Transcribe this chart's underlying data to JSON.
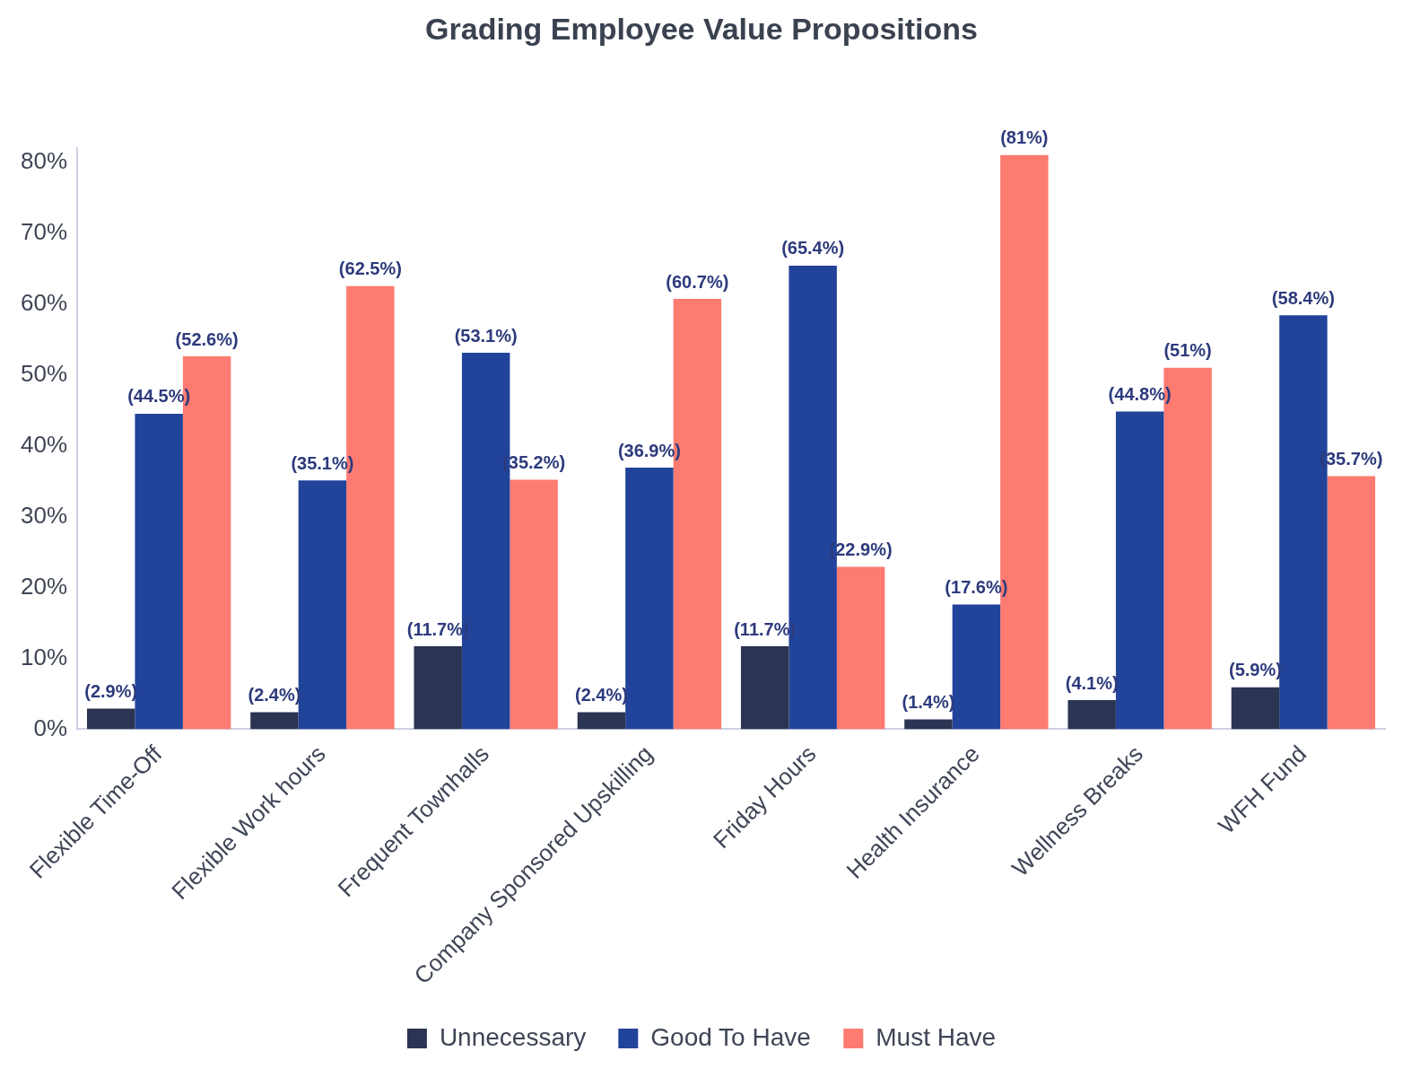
{
  "chart_data": {
    "type": "bar",
    "title": "Grading Employee Value Propositions",
    "categories": [
      "Flexible Time-Off",
      "Flexible Work hours",
      "Frequent Townhalls",
      "Company Sponsored Upskilling",
      "Friday Hours",
      "Health Insurance",
      "Wellness Breaks",
      "WFH Fund"
    ],
    "series": [
      {
        "name": "Unnecessary",
        "color": "#2b3452",
        "values": [
          2.9,
          2.4,
          11.7,
          2.4,
          11.7,
          1.4,
          4.1,
          5.9
        ],
        "value_labels": [
          "(2.9%)",
          "(2.4%)",
          "(11.7%)",
          "(2.4%)",
          "(11.7%)",
          "(1.4%)",
          "(4.1%)",
          "(5.9%)"
        ]
      },
      {
        "name": "Good To Have",
        "color": "#21439a",
        "values": [
          44.5,
          35.1,
          53.1,
          36.9,
          65.4,
          17.6,
          44.8,
          58.4
        ],
        "value_labels": [
          "(44.5%)",
          "(35.1%)",
          "(53.1%)",
          "(36.9%)",
          "(65.4%)",
          "(17.6%)",
          "(44.8%)",
          "(58.4%)"
        ]
      },
      {
        "name": "Must Have",
        "color": "#fe7b71",
        "values": [
          52.6,
          62.5,
          35.2,
          60.7,
          22.9,
          81,
          51,
          35.7
        ],
        "value_labels": [
          "(52.6%)",
          "(62.5%)",
          "(35.2%)",
          "(60.7%)",
          "(22.9%)",
          "(81%)",
          "(51%)",
          "(35.7%)"
        ]
      }
    ],
    "ylim": [
      0,
      82
    ],
    "yticks": [
      {
        "value": 0,
        "label": "0%"
      },
      {
        "value": 10,
        "label": "10%"
      },
      {
        "value": 20,
        "label": "20%"
      },
      {
        "value": 30,
        "label": "30%"
      },
      {
        "value": 40,
        "label": "40%"
      },
      {
        "value": 50,
        "label": "50%"
      },
      {
        "value": 60,
        "label": "60%"
      },
      {
        "value": 70,
        "label": "70%"
      },
      {
        "value": 80,
        "label": "80%"
      }
    ],
    "grid": false,
    "legend": "bottom"
  }
}
